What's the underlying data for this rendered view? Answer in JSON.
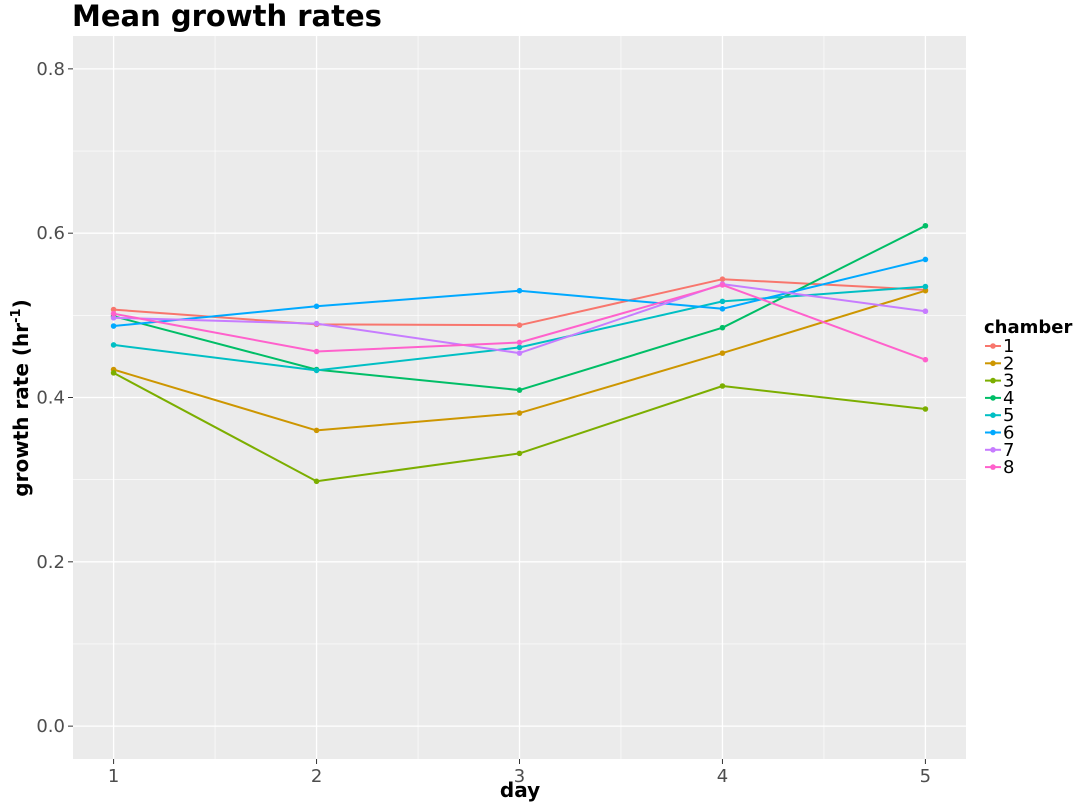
{
  "chart_data": {
    "type": "line",
    "title": "Mean growth rates",
    "xlabel": "day",
    "ylabel_main": "growth rate (hr",
    "ylabel_sup": "-1",
    "ylabel_close": ")",
    "x": [
      1,
      2,
      3,
      4,
      5
    ],
    "x_ticks": [
      "1",
      "2",
      "3",
      "4",
      "5"
    ],
    "xlim": [
      0.8,
      5.2
    ],
    "ylim": [
      -0.04,
      0.84
    ],
    "y_ticks": [
      "0.0",
      "0.2",
      "0.4",
      "0.6",
      "0.8"
    ],
    "grid": true,
    "legend_title": "chamber",
    "legend_position": "right",
    "series": [
      {
        "name": "1",
        "color": "#F8766D",
        "values": [
          0.507,
          0.489,
          0.488,
          0.544,
          0.531
        ]
      },
      {
        "name": "2",
        "color": "#CD9600",
        "values": [
          0.434,
          0.36,
          0.381,
          0.454,
          0.53
        ]
      },
      {
        "name": "3",
        "color": "#7CAE00",
        "values": [
          0.43,
          0.298,
          0.332,
          0.414,
          0.386
        ]
      },
      {
        "name": "4",
        "color": "#00BE67",
        "values": [
          0.499,
          0.434,
          0.409,
          0.485,
          0.609
        ]
      },
      {
        "name": "5",
        "color": "#00BFC4",
        "values": [
          0.464,
          0.433,
          0.461,
          0.517,
          0.535
        ]
      },
      {
        "name": "6",
        "color": "#00A9FF",
        "values": [
          0.487,
          0.511,
          0.53,
          0.508,
          0.568
        ]
      },
      {
        "name": "7",
        "color": "#C77CFF",
        "values": [
          0.497,
          0.49,
          0.454,
          0.538,
          0.505
        ]
      },
      {
        "name": "8",
        "color": "#FF61CC",
        "values": [
          0.502,
          0.456,
          0.467,
          0.537,
          0.446
        ]
      }
    ]
  }
}
